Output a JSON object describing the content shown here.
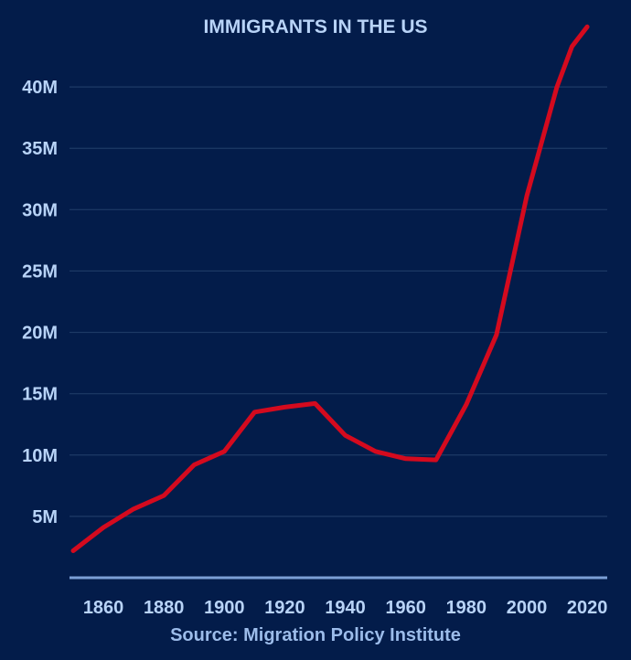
{
  "chart_data": {
    "type": "line",
    "title": "IMMIGRANTS IN THE US",
    "source": "Source: Migration Policy Institute",
    "xlabel": "",
    "ylabel": "",
    "x_ticks": [
      "1860",
      "1880",
      "1900",
      "1920",
      "1940",
      "1960",
      "1980",
      "2000",
      "2020"
    ],
    "y_ticks": [
      {
        "value": 5,
        "label": "5M"
      },
      {
        "value": 10,
        "label": "10M"
      },
      {
        "value": 15,
        "label": "15M"
      },
      {
        "value": 20,
        "label": "20M"
      },
      {
        "value": 25,
        "label": "25M"
      },
      {
        "value": 30,
        "label": "30M"
      },
      {
        "value": 35,
        "label": "35M"
      },
      {
        "value": 40,
        "label": "40M"
      }
    ],
    "xlim": [
      1850,
      2023
    ],
    "ylim": [
      0,
      45
    ],
    "grid": true,
    "unit": "millions",
    "series": [
      {
        "color": "#d40a1e",
        "x": [
          1850,
          1860,
          1870,
          1880,
          1890,
          1900,
          1910,
          1920,
          1930,
          1940,
          1950,
          1960,
          1970,
          1980,
          1990,
          2000,
          2010,
          2015,
          2020
        ],
        "y": [
          2.2,
          4.1,
          5.6,
          6.7,
          9.2,
          10.3,
          13.5,
          13.9,
          14.2,
          11.6,
          10.3,
          9.7,
          9.6,
          14.1,
          19.8,
          31.1,
          40.0,
          43.3,
          44.9
        ]
      }
    ]
  }
}
